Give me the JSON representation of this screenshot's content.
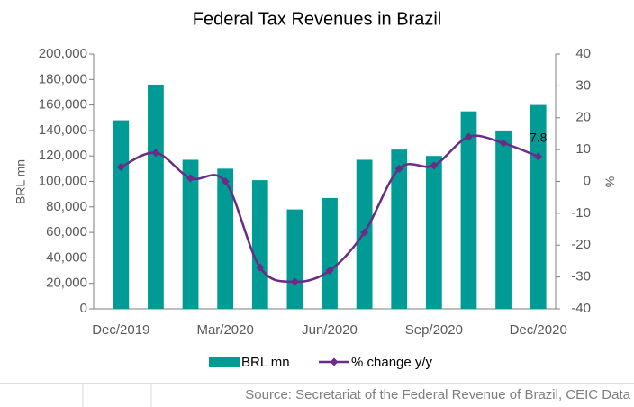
{
  "chart_data": {
    "type": "bar-line",
    "title": "Federal Tax Revenues in Brazil",
    "categories": [
      "Dec/2019",
      null,
      null,
      "Mar/2020",
      null,
      null,
      "Jun/2020",
      null,
      null,
      "Sep/2020",
      null,
      null,
      "Dec/2020"
    ],
    "series": [
      {
        "name": "BRL mn",
        "color": "#009b95",
        "type": "bar",
        "values": [
          148000,
          176000,
          117000,
          110000,
          101000,
          78000,
          87000,
          117000,
          125000,
          120000,
          155000,
          140000,
          160000
        ]
      },
      {
        "name": "% change y/y",
        "color": "#6a2c86",
        "type": "line",
        "axis": "y2",
        "values": [
          4.5,
          9,
          1,
          0,
          -27,
          -31.5,
          -28,
          -16,
          4,
          5,
          14,
          12,
          7.8
        ]
      }
    ],
    "ylabel": "BRL mn",
    "y2label": "%",
    "ylim": [
      0,
      200000
    ],
    "yticks": [
      0,
      {
        "value": 20000,
        "label": "20,000"
      },
      {
        "value": 40000,
        "label": "40,000"
      },
      {
        "value": 60000,
        "label": "60,000"
      },
      {
        "value": 80000,
        "label": "80,000"
      },
      {
        "value": 100000,
        "label": "100,000"
      },
      {
        "value": 120000,
        "label": "120,000"
      },
      {
        "value": 140000,
        "label": "140,000"
      },
      {
        "value": 160000,
        "label": "160,000"
      },
      {
        "value": 180000,
        "label": "180,000"
      },
      {
        "value": 200000,
        "label": "200,000"
      }
    ],
    "y2lim": [
      -40,
      40
    ],
    "y2ticks": [
      -40,
      -30,
      -20,
      -10,
      0,
      10,
      20,
      30,
      40
    ],
    "source": "Source: Secretariat of the Federal Revenue of Brazil, CEIC Data"
  }
}
